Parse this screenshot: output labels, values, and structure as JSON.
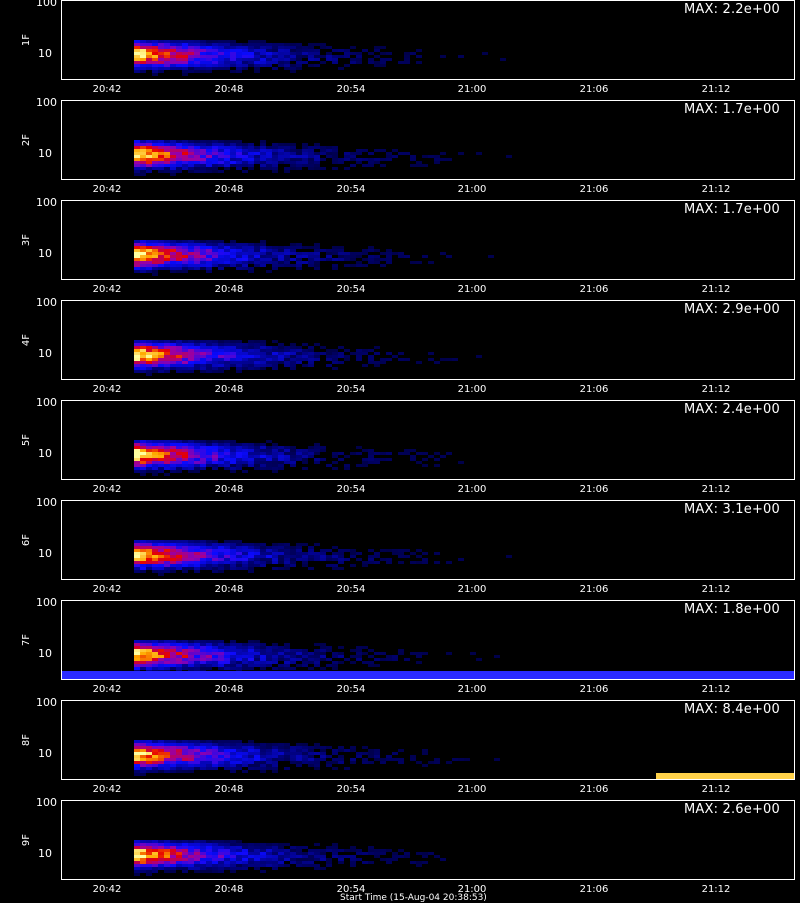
{
  "chart_data": {
    "type": "heatmap",
    "x_ticks": [
      "20:42",
      "20:48",
      "20:54",
      "21:00",
      "21:06",
      "21:12"
    ],
    "y_ticks": [
      "100",
      "10"
    ],
    "panels": [
      {
        "label": "1F",
        "max_text": "MAX: 2.2e+00",
        "max": 2.2
      },
      {
        "label": "2F",
        "max_text": "MAX: 1.7e+00",
        "max": 1.7
      },
      {
        "label": "3F",
        "max_text": "MAX: 1.7e+00",
        "max": 1.7
      },
      {
        "label": "4F",
        "max_text": "MAX: 2.9e+00",
        "max": 2.9
      },
      {
        "label": "5F",
        "max_text": "MAX: 2.4e+00",
        "max": 2.4
      },
      {
        "label": "6F",
        "max_text": "MAX: 3.1e+00",
        "max": 3.1
      },
      {
        "label": "7F",
        "max_text": "MAX: 1.8e+00",
        "max": 1.8
      },
      {
        "label": "8F",
        "max_text": "MAX: 8.4e+00",
        "max": 8.4
      },
      {
        "label": "9F",
        "max_text": "MAX: 2.6e+00",
        "max": 2.6
      }
    ],
    "colormap": [
      "#000000",
      "#000060",
      "#0000ff",
      "#8000c0",
      "#ff0000",
      "#ffc000",
      "#ffff80"
    ],
    "bottom_caption": "Start Time (15-Aug-04 20:38:53)"
  }
}
